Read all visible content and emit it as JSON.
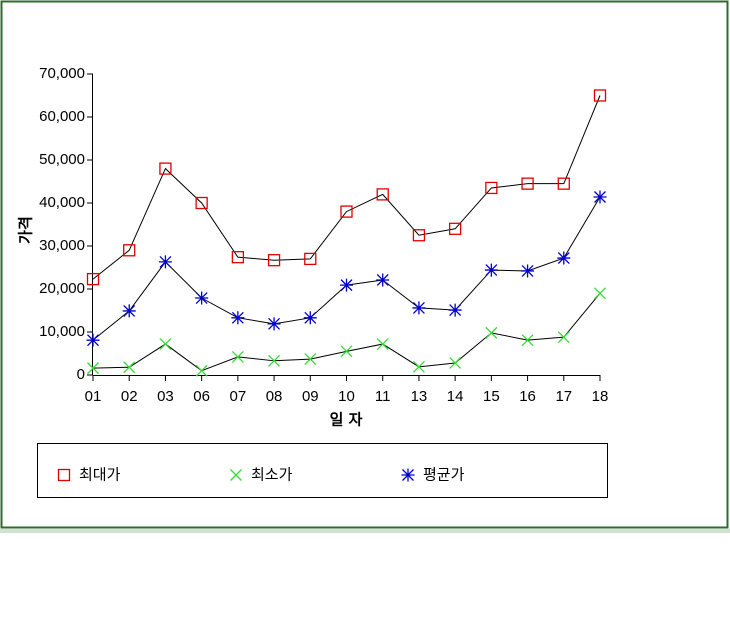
{
  "chart_data": {
    "type": "line",
    "x_label": "일 자",
    "y_label": "가격",
    "categories": [
      "01",
      "02",
      "03",
      "06",
      "07",
      "08",
      "09",
      "10",
      "11",
      "13",
      "14",
      "15",
      "16",
      "17",
      "18"
    ],
    "series": [
      {
        "name": "최대가",
        "color": "#e00000",
        "marker": "square",
        "values": [
          22300,
          29000,
          48000,
          40000,
          27400,
          26700,
          27000,
          38000,
          42000,
          32500,
          34000,
          43500,
          44500,
          44500,
          65000
        ]
      },
      {
        "name": "최소가",
        "color": "#33dd33",
        "marker": "x",
        "values": [
          1600,
          1800,
          7200,
          1000,
          4200,
          3300,
          3700,
          5500,
          7200,
          1900,
          2800,
          9800,
          8100,
          8800,
          19000
        ]
      },
      {
        "name": "평균가",
        "color": "#0000cc",
        "marker": "asterisk",
        "values": [
          8100,
          14900,
          26300,
          17900,
          13300,
          11900,
          13300,
          20900,
          22100,
          15600,
          15100,
          24400,
          24200,
          27200,
          41400
        ]
      }
    ],
    "line_color": "#000000",
    "ylim": [
      0,
      70000
    ],
    "yticks": [
      0,
      {
        "value": 10000,
        "label": "10,000"
      },
      {
        "value": 20000,
        "label": "20,000"
      },
      {
        "value": 30000,
        "label": "30,000"
      },
      {
        "value": 40000,
        "label": "40,000"
      },
      {
        "value": 50000,
        "label": "50,000"
      },
      {
        "value": 60000,
        "label": "60,000"
      },
      {
        "value": 70000,
        "label": "70,000"
      }
    ]
  }
}
